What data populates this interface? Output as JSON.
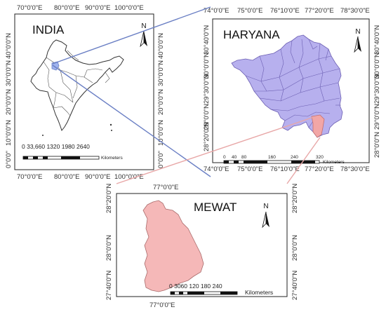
{
  "india": {
    "title": "INDIA",
    "top_ticks": [
      "70°0'0\"E",
      "80°0'0\"E",
      "90°0'0\"E",
      "100°0'0\"E"
    ],
    "bottom_ticks": [
      "70°0'0\"E",
      "80°0'0\"E",
      "90°0'0\"E",
      "100°0'0\"E"
    ],
    "left_ticks": [
      "40°0'0\"N",
      "30°0'0\"N",
      "20°0'0\"N",
      "10°0'0\"N",
      "0°0'0\""
    ],
    "right_ticks": [
      "40°0'0\"N",
      "30°0'0\"N",
      "20°0'0\"N",
      "10°0'0\"N",
      "0°0'0\""
    ],
    "scale_numbers": "0 33,660 1320 1980 2640",
    "scale_unit": "Kilometers",
    "north": "N"
  },
  "haryana": {
    "title": "HARYANA",
    "top_ticks": [
      "74°0'0\"E",
      "75°0'0\"E",
      "76°10'0\"E",
      "77°20'0\"E",
      "78°30'0\"E"
    ],
    "bottom_ticks": [
      "74°0'0\"E",
      "75°0'0\"E",
      "76°10'0\"E",
      "77°20'0\"E",
      "78°30'0\"E"
    ],
    "left_ticks": [
      "30°40'0\"N",
      "30°0'0\"N",
      "29°30'0\"N",
      "29°0'0\"N",
      "28°20'0\"N",
      "28°0'0\"N"
    ],
    "right_ticks": [
      "30°40'0\"N",
      "30°0'0\"N",
      "29°30'0\"N",
      "29°0'0\"N",
      "28°20'0\"N",
      "28°0'0\"N"
    ],
    "scale_numbers": [
      "0",
      "40",
      "80",
      "160",
      "240",
      "320"
    ],
    "scale_unit": "Kilometers",
    "north": "N",
    "fill_color": "#b7b0ee"
  },
  "mewat": {
    "title": "MEWAT",
    "top_ticks": [
      "77°0'0\"E"
    ],
    "bottom_ticks": [
      "77°0'0\"E"
    ],
    "left_ticks": [
      "28°20'0\"N",
      "28°0'0\"N",
      "27°40'0\"N"
    ],
    "right_ticks": [
      "28°20'0\"N",
      "28°0'0\"N",
      "27°40'0\"N"
    ],
    "scale_numbers": "0 3060 120 180 240",
    "scale_unit": "Kilometers",
    "north": "N",
    "fill_color": "#f5b8b8"
  },
  "colors": {
    "india_link": "#6a7fc4",
    "mewat_link": "#e8a7a7",
    "highlight_india": "#9fb3ee",
    "highlight_mewat": "#f2a6a6"
  }
}
